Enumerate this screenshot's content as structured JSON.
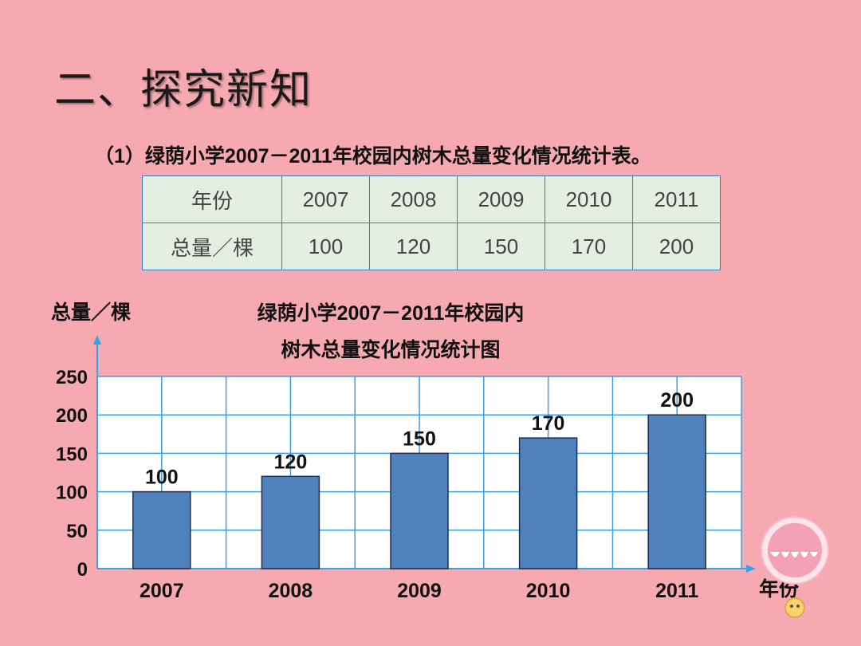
{
  "slide": {
    "title": "二、探究新知",
    "subtitle": "（1）绿荫小学2007－2011年校园内树木总量变化情况统计表。"
  },
  "table": {
    "row_headers": [
      "年份",
      "总量／棵"
    ],
    "years": [
      "2007",
      "2008",
      "2009",
      "2010",
      "2011"
    ],
    "totals": [
      "100",
      "120",
      "150",
      "170",
      "200"
    ]
  },
  "chart_data": {
    "type": "bar",
    "title_line1": "绿荫小学2007－2011年校园内",
    "title_line2": "树木总量变化情况统计图",
    "ylabel": "总量／棵",
    "xlabel": "年份",
    "categories": [
      "2007",
      "2008",
      "2009",
      "2010",
      "2011"
    ],
    "values": [
      100,
      120,
      150,
      170,
      200
    ],
    "ylim": [
      0,
      250
    ],
    "yticks": [
      0,
      50,
      100,
      150,
      200,
      250
    ],
    "grid": true,
    "colors": {
      "bar": "#4f81bd",
      "grid": "#3aa0e8",
      "background": "#ffffff"
    }
  }
}
